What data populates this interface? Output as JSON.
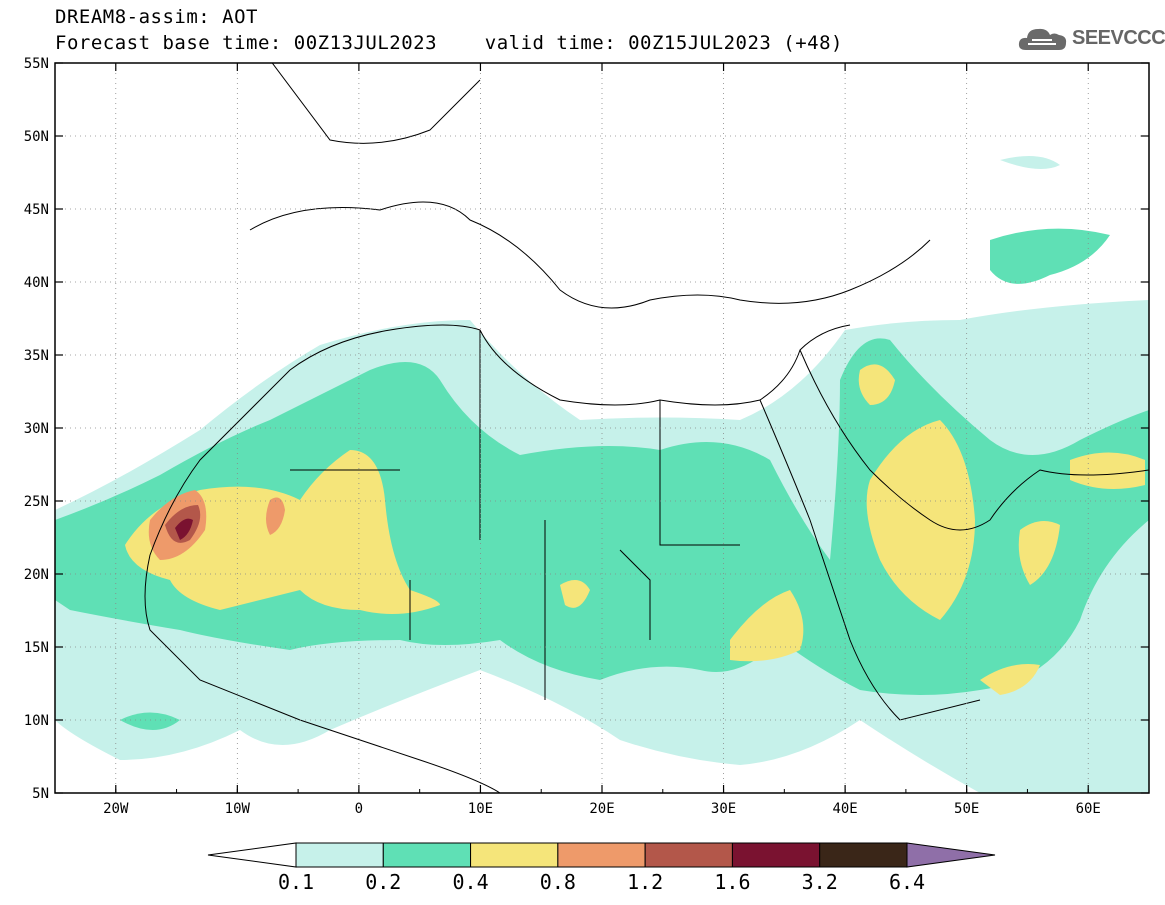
{
  "title": {
    "line1": "DREAM8-assim: AOT",
    "line2": "Forecast base time: 00Z13JUL2023    valid time: 00Z15JUL2023 (+48)"
  },
  "logo": {
    "text": "SEEVCCC",
    "icon": "cloud-icon",
    "color": "#666666"
  },
  "map": {
    "lon_range": [
      -25,
      65
    ],
    "lat_range": [
      5,
      55
    ],
    "lat_ticks": [
      "5N",
      "10N",
      "15N",
      "20N",
      "25N",
      "30N",
      "35N",
      "40N",
      "45N",
      "50N",
      "55N"
    ],
    "lon_ticks": [
      "20W",
      "10W",
      "0",
      "10E",
      "20E",
      "30E",
      "40E",
      "50E",
      "60E"
    ]
  },
  "legend": {
    "labels": [
      "0.1",
      "0.2",
      "0.4",
      "0.8",
      "1.2",
      "1.6",
      "3.2",
      "6.4"
    ],
    "colors": [
      "#ffffff",
      "#c6f1ea",
      "#5fe0b5",
      "#f5e57a",
      "#ee9a6a",
      "#b3574a",
      "#7a1230",
      "#3a2618",
      "#8f6fa8"
    ]
  }
}
